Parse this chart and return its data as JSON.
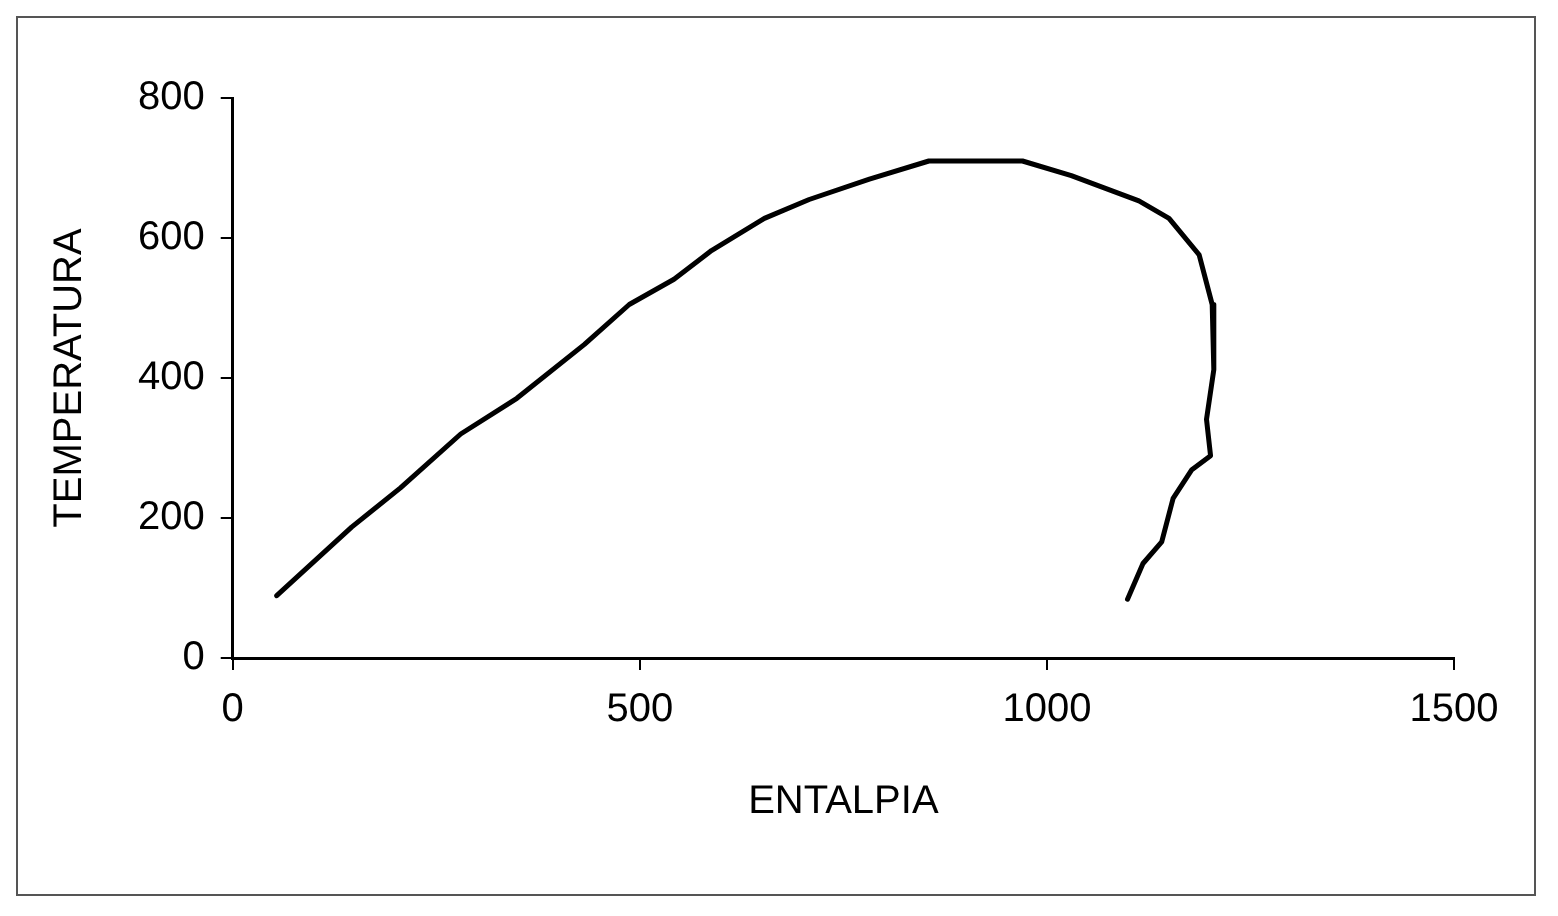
{
  "chart_data": {
    "type": "line",
    "xlabel": "ENTALPIA",
    "ylabel": "TEMPERATURA",
    "xlim": [
      0,
      1500
    ],
    "xticks": [
      0,
      500,
      1000,
      1500
    ],
    "ylim": [
      0,
      800
    ],
    "yticks": [
      0,
      200,
      400,
      600,
      800
    ],
    "grid": false,
    "legend": false,
    "marker": "none",
    "line_style": "solid",
    "series": [
      {
        "color": "#000000",
        "x": [
          54,
          146,
          206,
          280,
          349,
          432,
          487,
          542,
          588,
          653,
          708,
          782,
          855,
          970,
          1030,
          1113,
          1150,
          1187,
          1203,
          1205,
          1196,
          1201,
          1178,
          1155,
          1141,
          1118,
          1099
        ],
        "values": [
          89,
          187,
          243,
          320,
          371,
          448,
          505,
          541,
          582,
          628,
          655,
          684,
          710,
          710,
          689,
          653,
          628,
          576,
          505,
          412,
          341,
          289,
          269,
          228,
          166,
          135,
          84
        ]
      }
    ]
  }
}
